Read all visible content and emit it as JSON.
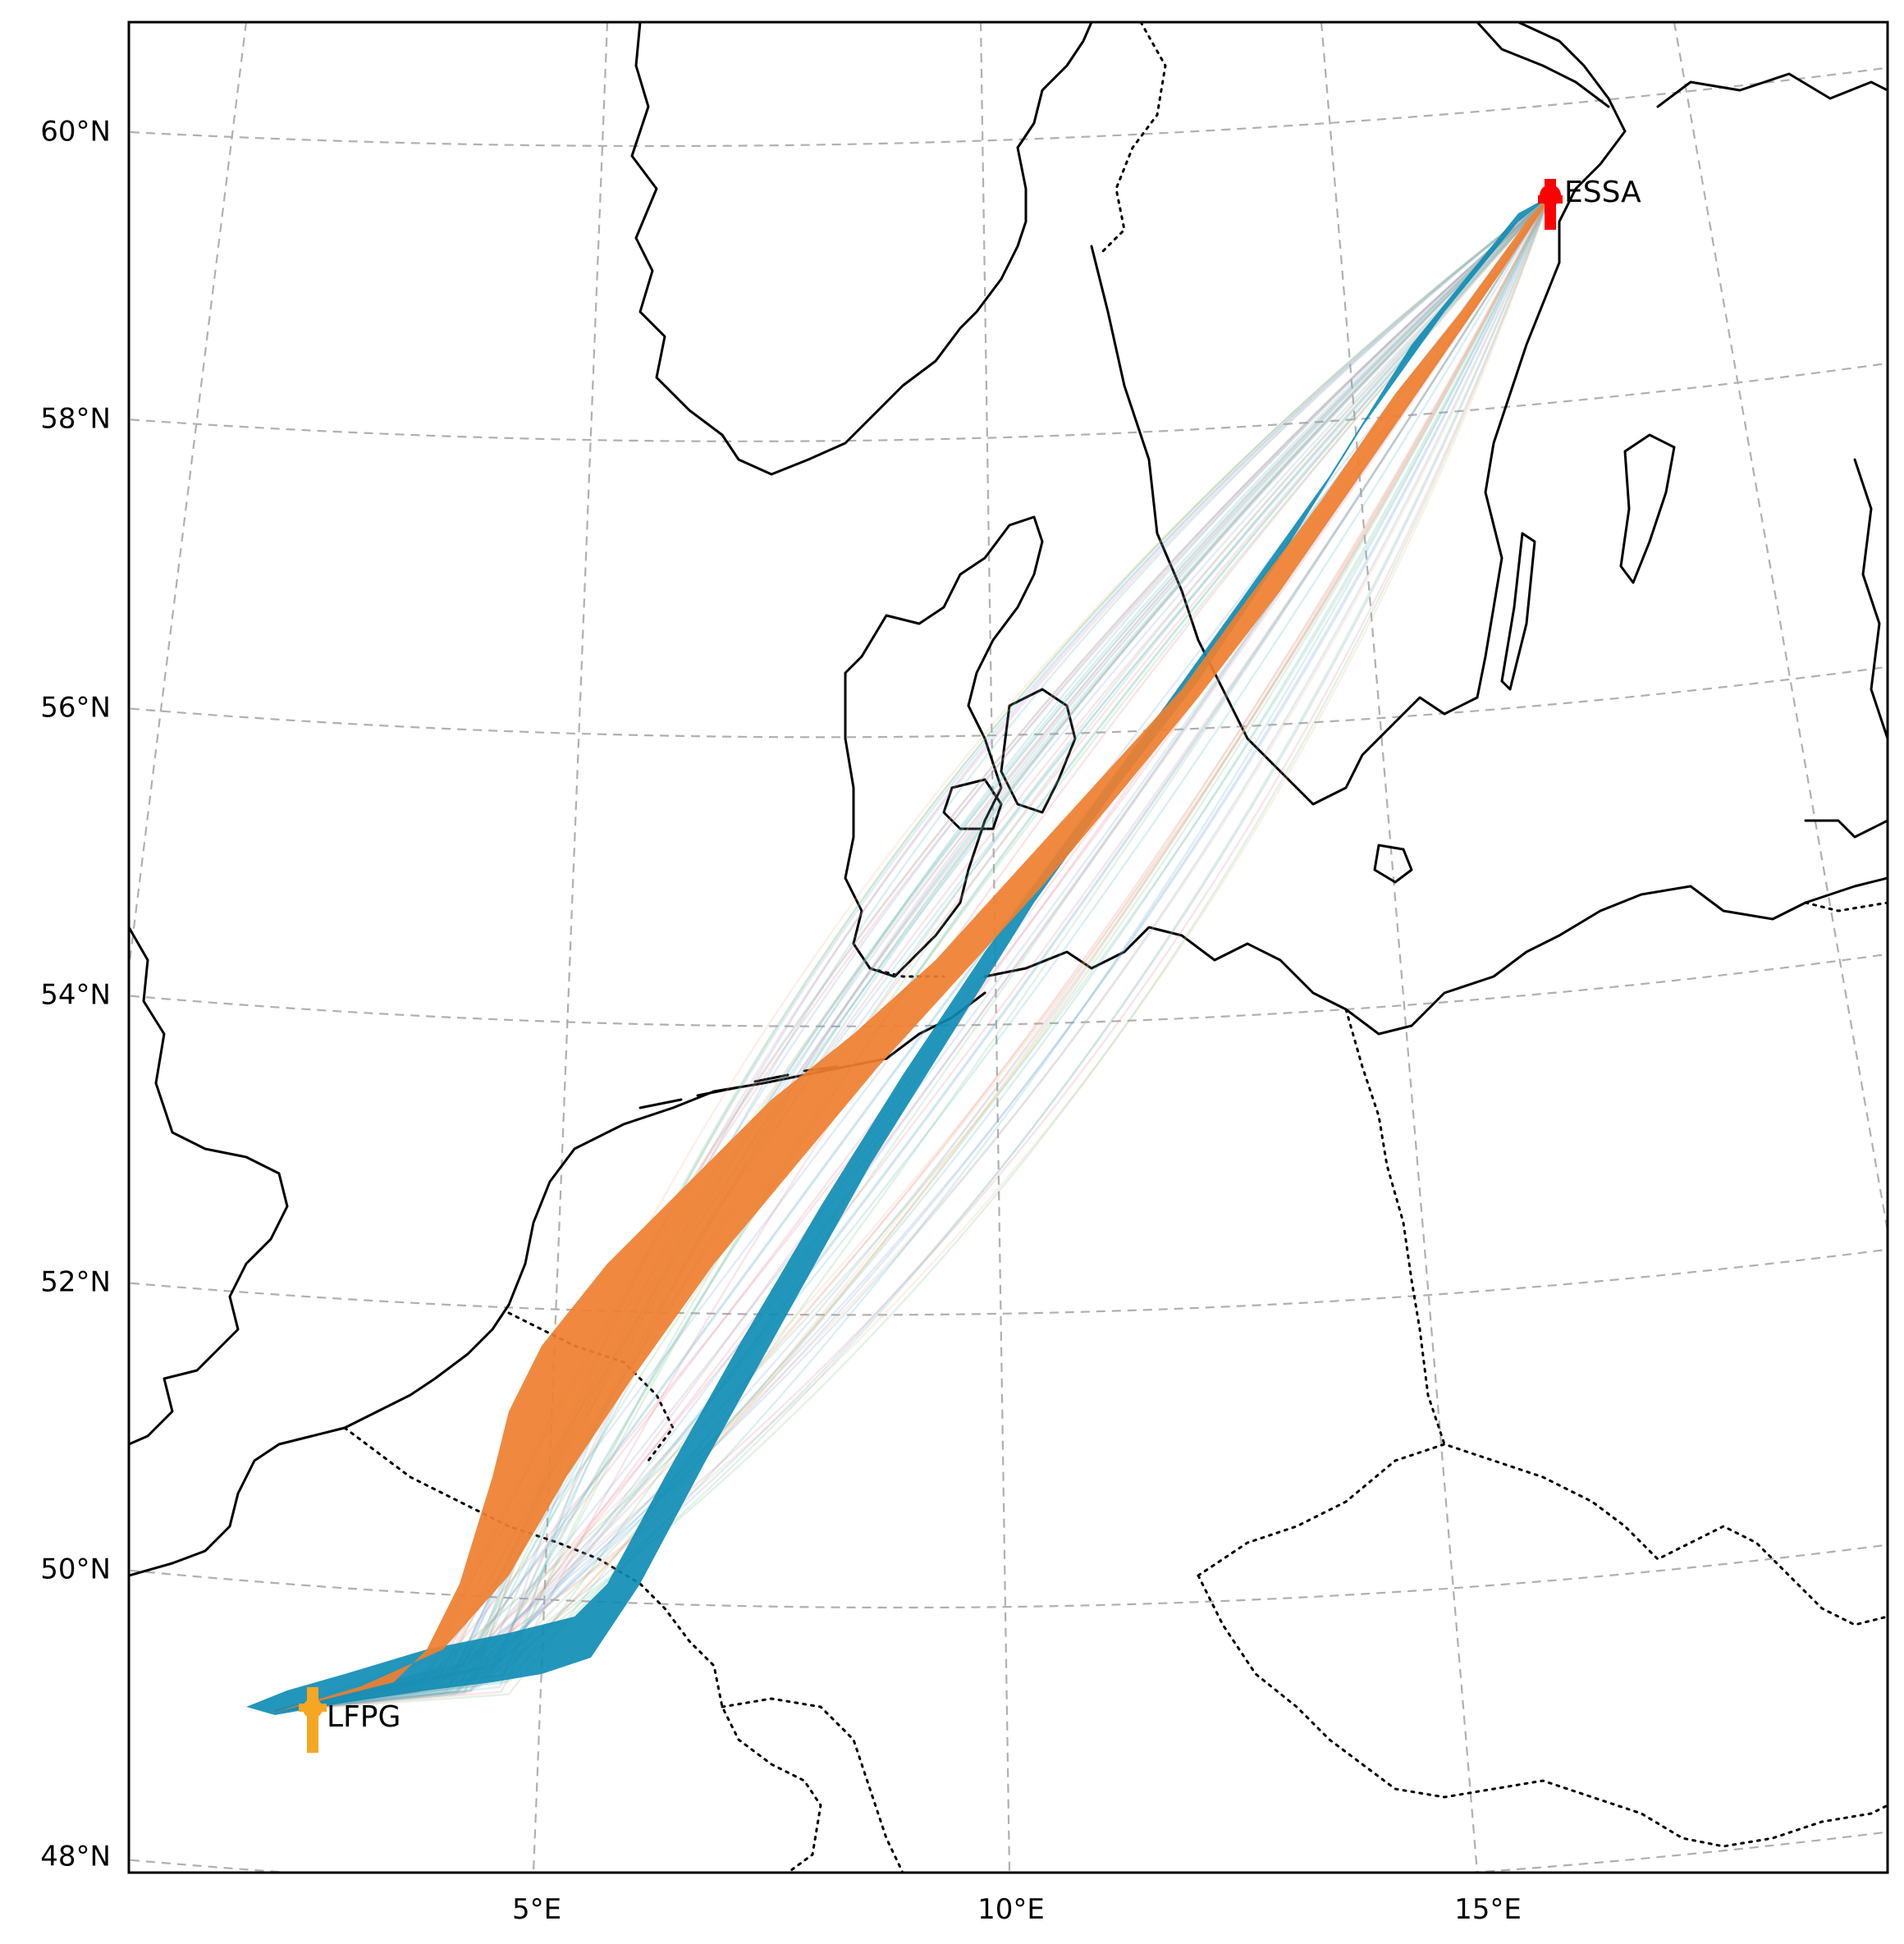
{
  "map": {
    "lat_labels": [
      "60°N",
      "58°N",
      "56°N",
      "54°N",
      "52°N",
      "50°N",
      "48°N"
    ],
    "lon_labels": [
      "5°E",
      "10°E",
      "15°E"
    ]
  },
  "airports": {
    "origin": {
      "code": "LFPG",
      "color": "#f5a623"
    },
    "destination": {
      "code": "ESSA",
      "color": "#ff0000"
    }
  },
  "traffic": {
    "north_flow_color": "#ef7f2f",
    "south_flow_color": "#0b8bb4",
    "minor_track_colors": [
      "#e3839a",
      "#7cc48a",
      "#f2b98c",
      "#7aa6d8",
      "#56b7c4"
    ]
  }
}
